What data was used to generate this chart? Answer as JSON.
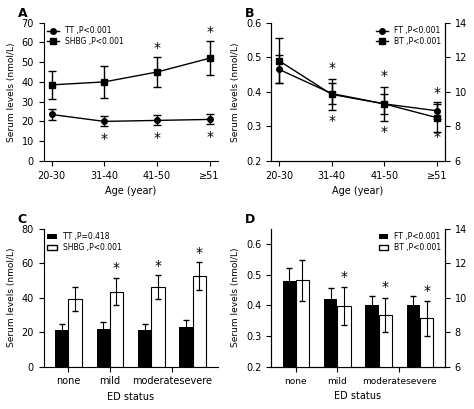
{
  "panel_A": {
    "title": "A",
    "legend": [
      "TT ,P<0.001",
      "SHBG ,P<0.001"
    ],
    "x_labels": [
      "20-30",
      "31-40",
      "41-50",
      "≥51"
    ],
    "xlabel": "Age (year)",
    "ylabel": "Serum levels (nmol/L)",
    "TT_mean": [
      23.5,
      20.0,
      20.5,
      21.0
    ],
    "TT_err": [
      3.0,
      2.5,
      2.5,
      2.5
    ],
    "SHBG_mean": [
      38.5,
      40.0,
      45.0,
      52.0
    ],
    "SHBG_err": [
      7.0,
      8.0,
      7.5,
      8.5
    ],
    "TT_star": [
      false,
      true,
      true,
      true
    ],
    "SHBG_star": [
      false,
      false,
      true,
      true
    ],
    "ylim": [
      0,
      70
    ]
  },
  "panel_B": {
    "title": "B",
    "legend": [
      "FT ,P<0.001",
      "BT ,P<0.001"
    ],
    "x_labels": [
      "20-30",
      "31-40",
      "41-50",
      "≥51"
    ],
    "xlabel": "Age (year)",
    "ylabel": "Serum levels (nmol/L)",
    "FT_mean": [
      0.465,
      0.395,
      0.365,
      0.345
    ],
    "FT_err": [
      0.04,
      0.03,
      0.03,
      0.025
    ],
    "BT_mean": [
      11.8,
      9.85,
      9.3,
      8.5
    ],
    "BT_err": [
      1.3,
      0.9,
      1.0,
      0.8
    ],
    "FT_star": [
      false,
      true,
      true,
      true
    ],
    "BT_star": [
      false,
      true,
      true,
      true
    ],
    "ylim_left": [
      0.2,
      0.6
    ],
    "yticks_left": [
      0.2,
      0.3,
      0.4,
      0.5,
      0.6
    ],
    "ylim_right": [
      6,
      14
    ],
    "yticks_right": [
      6,
      8,
      10,
      12,
      14
    ]
  },
  "panel_C": {
    "title": "C",
    "legend": [
      "TT ,P=0.418",
      "SHBG ,P<0.001"
    ],
    "xlabel": "ED status",
    "ylabel": "Serum levels (nmol/L)",
    "TT_mean": [
      21.5,
      22.0,
      21.5,
      23.0
    ],
    "TT_err": [
      3.5,
      4.0,
      3.5,
      4.0
    ],
    "SHBG_mean": [
      39.0,
      43.5,
      46.0,
      52.5
    ],
    "SHBG_err": [
      7.0,
      8.0,
      7.0,
      8.0
    ],
    "TT_star": [
      false,
      false,
      false,
      false
    ],
    "SHBG_star": [
      false,
      true,
      true,
      true
    ],
    "ylim": [
      0,
      80
    ],
    "x_groups": [
      "none",
      "mild",
      "moderate",
      "severe"
    ],
    "x_tick_labels": [
      "none",
      "mild",
      "moderatesevere"
    ]
  },
  "panel_D": {
    "title": "D",
    "legend": [
      "FT ,P<0.001",
      "BT ,P<0.001"
    ],
    "xlabel": "ED status",
    "ylabel": "Serum levels (nmol/L)",
    "FT_mean": [
      0.48,
      0.42,
      0.4,
      0.4
    ],
    "FT_err": [
      0.04,
      0.035,
      0.03,
      0.03
    ],
    "BT_mean": [
      11.0,
      9.5,
      9.0,
      8.8
    ],
    "BT_err": [
      1.2,
      1.1,
      1.0,
      1.0
    ],
    "FT_star": [
      false,
      true,
      true,
      true
    ],
    "BT_star": [
      false,
      true,
      true,
      true
    ],
    "ylim_left": [
      0.2,
      0.65
    ],
    "yticks_left": [
      0.2,
      0.3,
      0.4,
      0.5,
      0.6
    ],
    "ylim_right": [
      6,
      14
    ],
    "yticks_right": [
      6,
      8,
      10,
      12,
      14
    ],
    "x_groups": [
      "none",
      "mild",
      "moderate",
      "severe"
    ],
    "x_tick_labels": [
      "none",
      "mild",
      "moderatesevere"
    ]
  }
}
